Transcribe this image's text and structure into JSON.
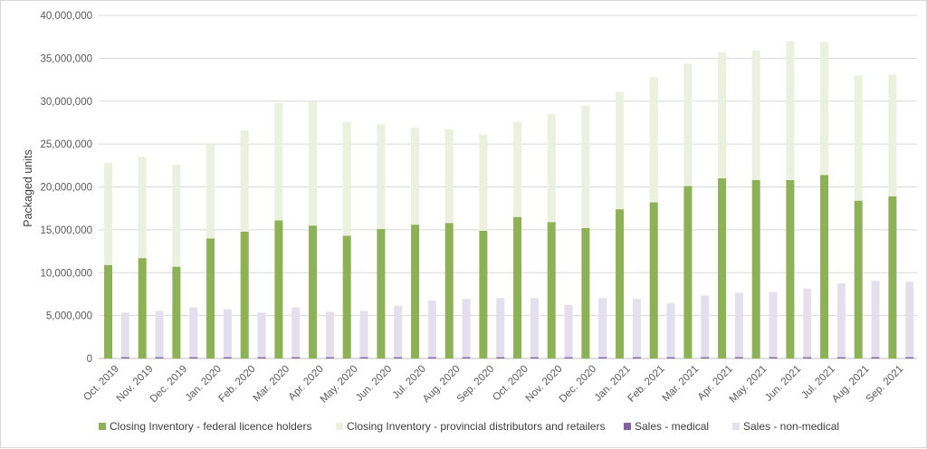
{
  "chart_data": {
    "type": "bar",
    "title": "",
    "xlabel": "",
    "ylabel": "Packaged units",
    "ylim": [
      0,
      40000000
    ],
    "y_ticks": [
      "0",
      "5,000,000",
      "10,000,000",
      "15,000,000",
      "20,000,000",
      "25,000,000",
      "30,000,000",
      "35,000,000",
      "40,000,000"
    ],
    "grid": true,
    "legend_position": "bottom",
    "categories": [
      "Oct. 2019",
      "Nov. 2019",
      "Dec. 2019",
      "Jan. 2020",
      "Feb. 2020",
      "Mar. 2020",
      "Apr. 2020",
      "May. 2020",
      "Jun. 2020",
      "Jul. 2020",
      "Aug. 2020",
      "Sep. 2020",
      "Oct. 2020",
      "Nov. 2020",
      "Dec. 2020",
      "Jan. 2021",
      "Feb. 2021",
      "Mar. 2021",
      "Apr. 2021",
      "May. 2021",
      "Jun. 2021",
      "Jul. 2021",
      "Aug. 2021",
      "Sep. 2021"
    ],
    "series": [
      {
        "name": "Closing Inventory - federal licence holders",
        "color": "#8db255",
        "stack": "inventory",
        "values": [
          10900000,
          11700000,
          10700000,
          14000000,
          14800000,
          16100000,
          15500000,
          14300000,
          15100000,
          15600000,
          15800000,
          14900000,
          16500000,
          15900000,
          15200000,
          17400000,
          18200000,
          20100000,
          21000000,
          20800000,
          20800000,
          21400000,
          18400000,
          18900000
        ]
      },
      {
        "name": "Closing Inventory - provincial distributors and retailers",
        "color": "#ebf1de",
        "stack": "inventory",
        "values": [
          11900000,
          11800000,
          11900000,
          11000000,
          11800000,
          13700000,
          14500000,
          13300000,
          12200000,
          11300000,
          10900000,
          11200000,
          11100000,
          12600000,
          14300000,
          13700000,
          14600000,
          14300000,
          14700000,
          15100000,
          16200000,
          15500000,
          14600000,
          14200000
        ]
      },
      {
        "name": "Sales - medical",
        "color": "#8064a2",
        "stack": "sales",
        "values": [
          150000,
          150000,
          150000,
          150000,
          150000,
          150000,
          150000,
          150000,
          150000,
          150000,
          150000,
          150000,
          150000,
          150000,
          150000,
          150000,
          150000,
          150000,
          150000,
          150000,
          150000,
          150000,
          150000,
          150000
        ]
      },
      {
        "name": "Sales - non-medical",
        "color": "#e4dfec",
        "stack": "sales",
        "values": [
          5200000,
          5400000,
          5800000,
          5600000,
          5200000,
          5800000,
          5300000,
          5400000,
          6000000,
          6600000,
          6800000,
          6900000,
          6900000,
          6100000,
          6900000,
          6800000,
          6300000,
          7200000,
          7500000,
          7600000,
          8000000,
          8600000,
          8900000,
          8800000
        ]
      }
    ]
  }
}
